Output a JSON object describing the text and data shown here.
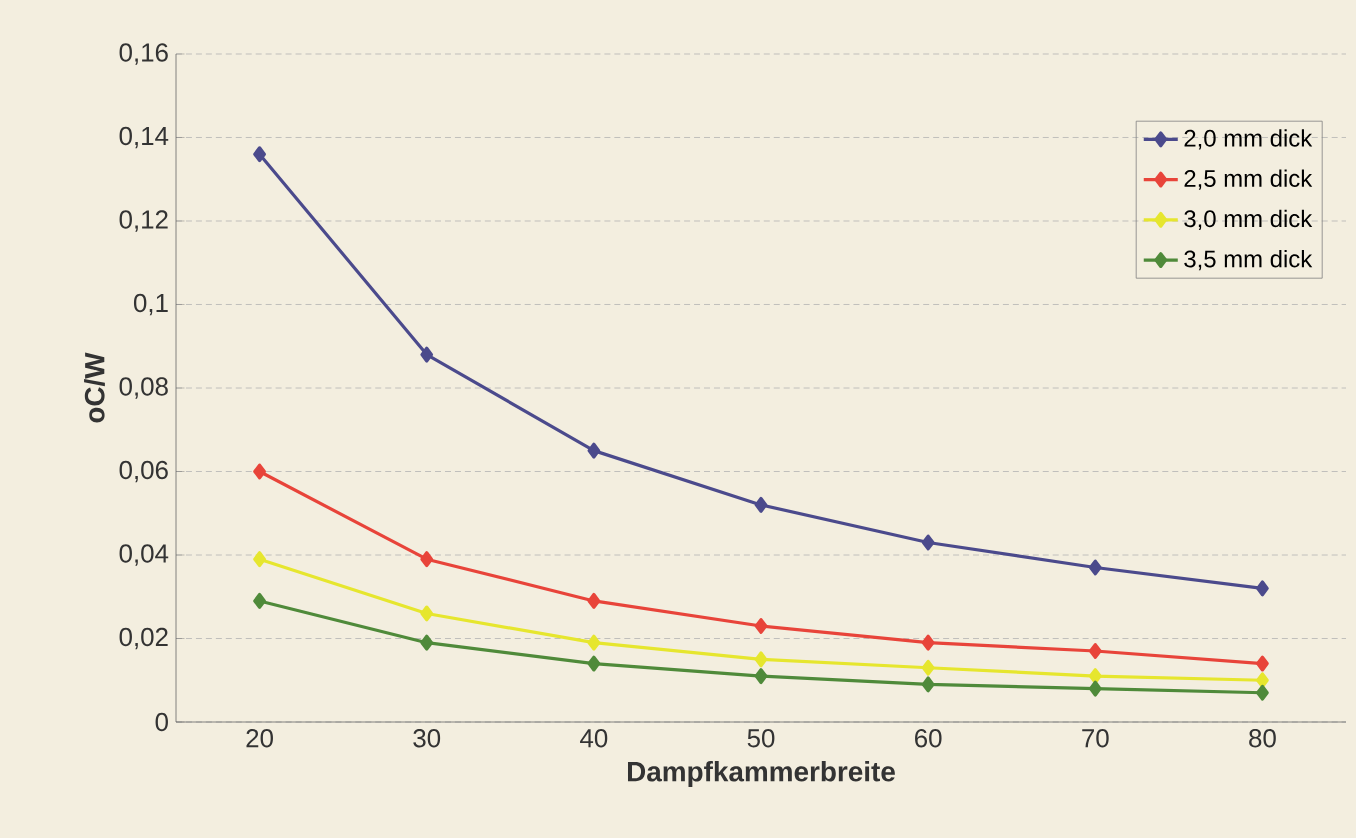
{
  "chart_data": {
    "type": "line",
    "xlabel": "Dampfkammerbreite",
    "ylabel": "oC/W",
    "categories": [
      "20",
      "30",
      "40",
      "50",
      "60",
      "70",
      "80"
    ],
    "series": [
      {
        "name": "2,0 mm dick",
        "color": "#4b4a8c",
        "values": [
          0.136,
          0.088,
          0.065,
          0.052,
          0.043,
          0.037,
          0.032
        ]
      },
      {
        "name": "2,5 mm dick",
        "color": "#e8443a",
        "values": [
          0.06,
          0.039,
          0.029,
          0.023,
          0.019,
          0.017,
          0.014
        ]
      },
      {
        "name": "3,0 mm dick",
        "color": "#e6e62e",
        "values": [
          0.039,
          0.026,
          0.019,
          0.015,
          0.013,
          0.011,
          0.01
        ]
      },
      {
        "name": "3,5 mm dick",
        "color": "#4f8a3a",
        "values": [
          0.029,
          0.019,
          0.014,
          0.011,
          0.009,
          0.008,
          0.007
        ]
      }
    ],
    "ylim": [
      0,
      0.16
    ],
    "yticks": [
      0,
      {
        "value": 0.02,
        "label": "0,02"
      },
      {
        "value": 0.04,
        "label": "0,04"
      },
      {
        "value": 0.06,
        "label": "0,06"
      },
      {
        "value": 0.08,
        "label": "0,08"
      },
      {
        "value": 0.1,
        "label": "0,1"
      },
      {
        "value": 0.12,
        "label": "0,12"
      },
      {
        "value": 0.14,
        "label": "0,14"
      },
      {
        "value": 0.16,
        "label": "0,16"
      }
    ],
    "grid": "y",
    "legend": "top right",
    "marker": "diamond",
    "line_style": "solid"
  }
}
